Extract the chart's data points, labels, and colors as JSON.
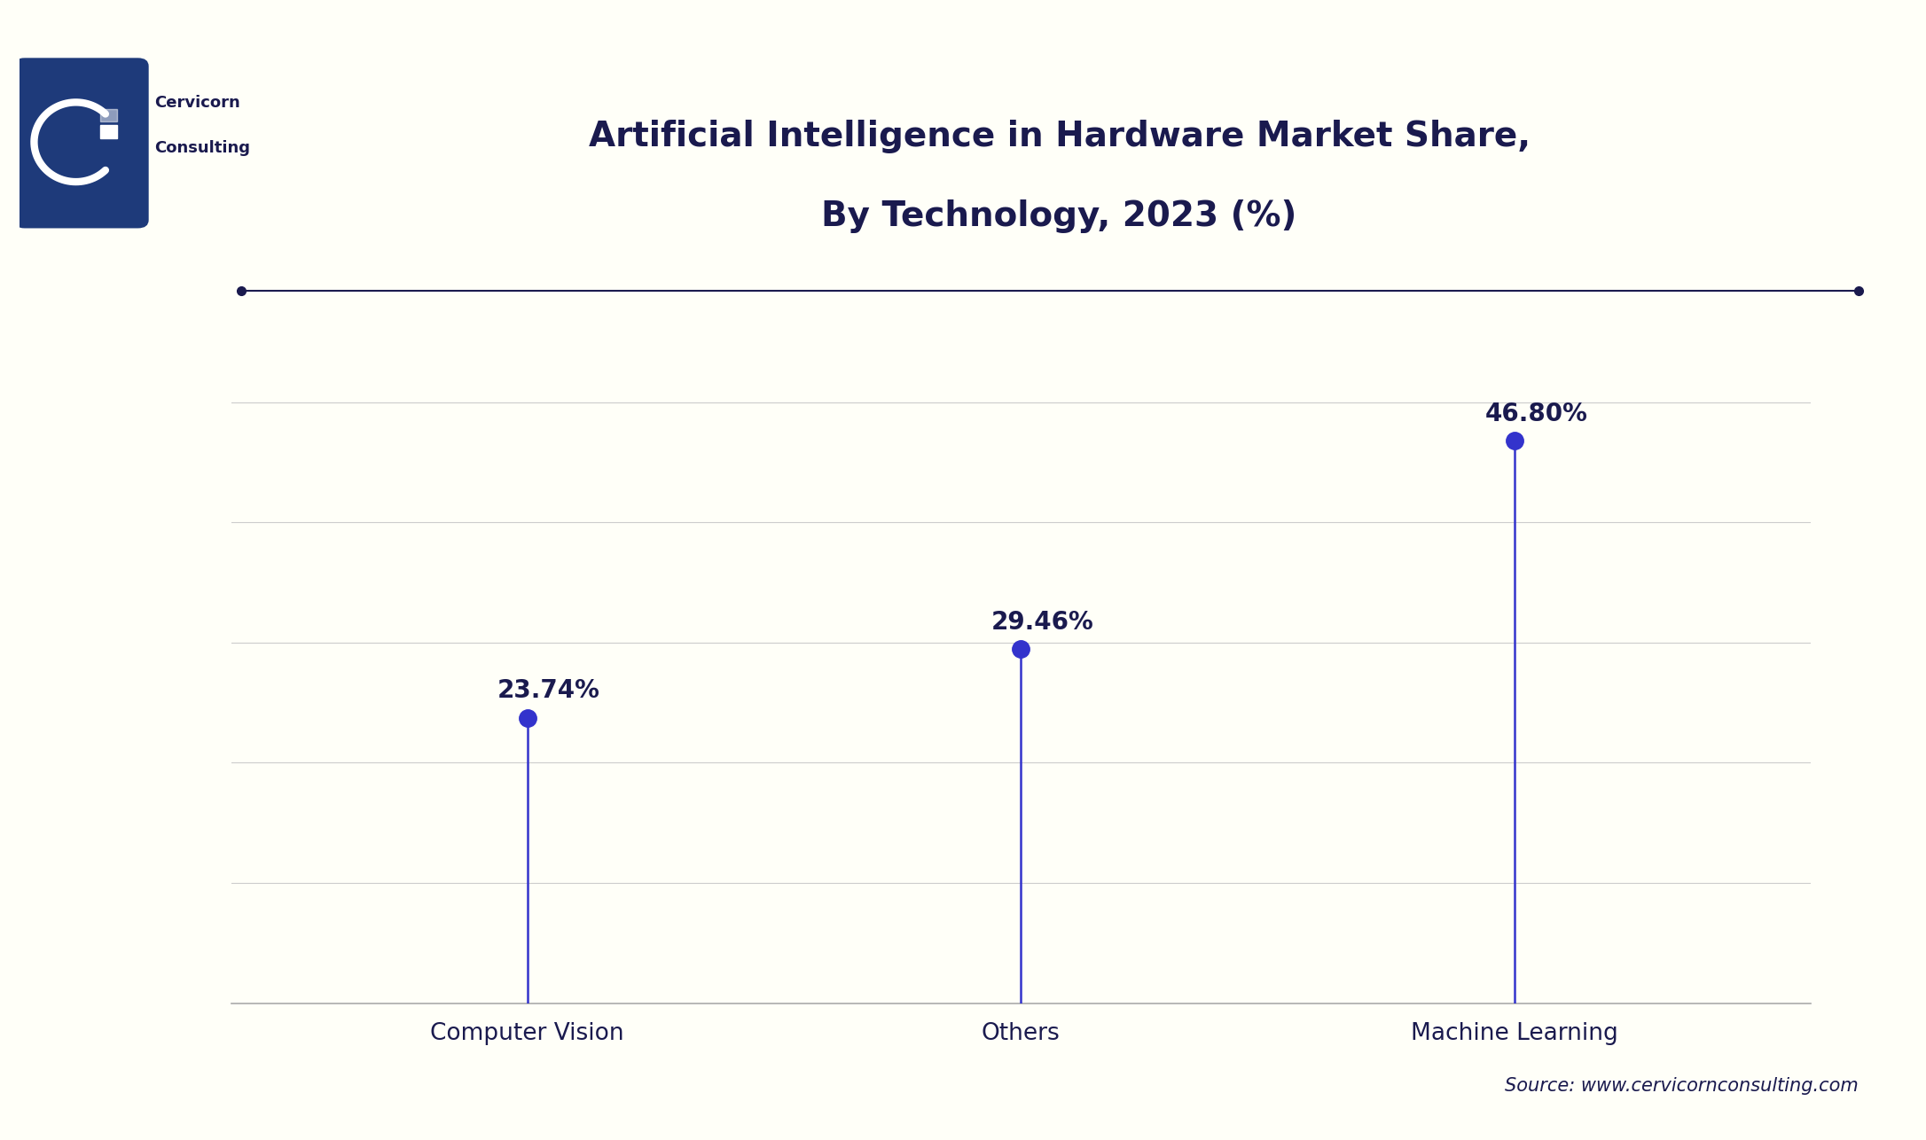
{
  "title_line1": "Artificial Intelligence in Hardware Market Share,",
  "title_line2": "By Technology, 2023 (%)",
  "categories": [
    "Computer Vision",
    "Others",
    "Machine Learning"
  ],
  "values": [
    23.74,
    29.46,
    46.8
  ],
  "labels": [
    "23.74%",
    "29.46%",
    "46.80%"
  ],
  "line_color": "#3333cc",
  "marker_color": "#3333cc",
  "background_color": "#fffff8",
  "title_color": "#1a1a4e",
  "axis_label_color": "#1a1a4e",
  "source_text": "Source: www.cervicornconsulting.com",
  "source_color": "#1a1a4e",
  "ylim": [
    0,
    55
  ],
  "grid_color": "#cccccc",
  "top_line_color": "#1a1a4e",
  "logo_box_color": "#1e3a7a",
  "title_fontsize": 28,
  "label_fontsize": 20,
  "tick_fontsize": 19,
  "source_fontsize": 15
}
